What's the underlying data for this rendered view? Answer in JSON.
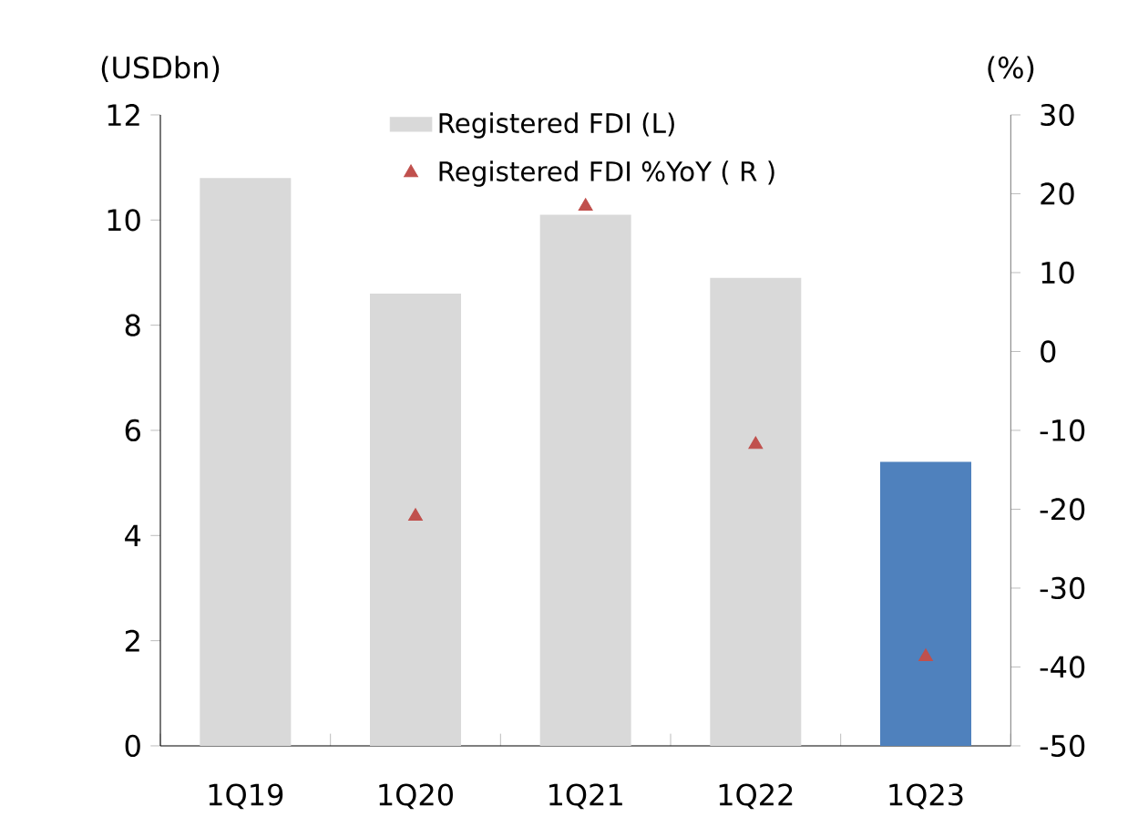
{
  "chart_data": {
    "type": "bar",
    "categories": [
      "1Q19",
      "1Q20",
      "1Q21",
      "1Q22",
      "1Q23"
    ],
    "ylabel": "(USDbn)",
    "y2label": "(%)",
    "ylim": [
      0,
      12
    ],
    "yticks": [
      0,
      2,
      4,
      6,
      8,
      10,
      12
    ],
    "y2lim": [
      -50,
      30
    ],
    "y2ticks": [
      -50,
      -40,
      -30,
      -20,
      -10,
      0,
      10,
      20,
      30
    ],
    "legend": "top",
    "grid": false,
    "series": [
      {
        "name": "Registered FDI (L)",
        "colors": [
          "#d9d9d9",
          "#d9d9d9",
          "#d9d9d9",
          "#d9d9d9",
          "#4f81bd"
        ],
        "values": [
          10.8,
          8.6,
          10.1,
          8.9,
          5.4
        ]
      },
      {
        "name": "Registered FDI %YoY ( R )",
        "type": "scatter",
        "axis": "y2",
        "color": "#c0504d",
        "marker": "triangle",
        "values": [
          null,
          -20.9,
          18.4,
          -11.8,
          -38.7
        ]
      }
    ]
  }
}
